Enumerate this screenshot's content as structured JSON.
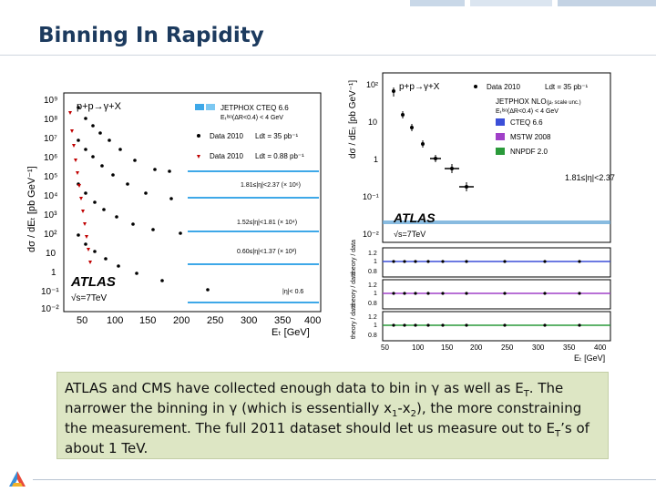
{
  "slide": {
    "title": "Binning In Rapidity",
    "caption": {
      "p1": "ATLAS and CMS have collected enough data to bin in γ as well as E",
      "p1_sub": "T",
      "p2": ".   The narrower the binning in γ (which is essentially x",
      "p2_sub1": "1",
      "p2_mid": "-x",
      "p2_sub2": "2",
      "p3": "), the more constraining the measurement.  The full 2011 dataset should let us measure out to E",
      "p3_sub": "T",
      "p4": "’s of about 1 TeV."
    }
  },
  "left_plot": {
    "ylabel": "dσ / dEₜ [pb GeV⁻¹]",
    "xlabel": "Eₜ [GeV]",
    "process": "p+p→γ+X",
    "theory_legend": "JETPHOX CTEQ 6.6",
    "theory_sub": "Eₜᴵˢᵒ(ΔR<0.4) < 4 GeV",
    "data_full": "Data 2010",
    "data_full_lumi": "Ldt = 35 pb⁻¹",
    "data_low": "Data 2010",
    "data_low_lumi": "Ldt = 0.88 pb⁻¹",
    "experiment": "ATLAS",
    "energy": "√s=7TeV",
    "bins": [
      "1.81≤|η|<2.37 (× 10⁶)",
      "1.52≤|η|<1.81 (× 10⁴)",
      "0.60≤|η|<1.37 (× 10²)",
      "|η|< 0.6"
    ],
    "yticks": [
      "10⁹",
      "10⁸",
      "10⁷",
      "10⁶",
      "10⁵",
      "10⁴",
      "10³",
      "10²",
      "10",
      "1",
      "10⁻¹",
      "10⁻²"
    ],
    "xticks": [
      "50",
      "100",
      "150",
      "200",
      "250",
      "300",
      "350",
      "400"
    ]
  },
  "right_plot": {
    "ylabel": "dσ / dEₜ [pb GeV⁻¹]",
    "xlabel": "Eₜ [GeV]",
    "process": "p+p→γ+X",
    "data_label": "Data 2010",
    "lumi": "Ldt = 35 pb⁻¹",
    "theory": "JETPHOX NLO",
    "theory_note": "(μᵣ scale unc.)",
    "theory_sub": "Eₜᴵˢᵒ(ΔR<0.4) < 4 GeV",
    "pdfs": [
      {
        "name": "CTEQ 6.6",
        "color": "#3b4fd8"
      },
      {
        "name": "MSTW 2008",
        "color": "#a040c8"
      },
      {
        "name": "NNPDF 2.0",
        "color": "#2a9a3a"
      }
    ],
    "eta_range": "1.81≤|η|<2.37",
    "experiment": "ATLAS",
    "energy": "√s=7TeV",
    "yticks": [
      "10²",
      "10",
      "1",
      "10⁻¹",
      "10⁻²"
    ],
    "ratio_ylabel": "theory / data",
    "ratio_ticks": [
      "1.2",
      "1",
      "0.8"
    ],
    "xticks": [
      "50",
      "100",
      "150",
      "200",
      "250",
      "300",
      "350",
      "400"
    ]
  }
}
